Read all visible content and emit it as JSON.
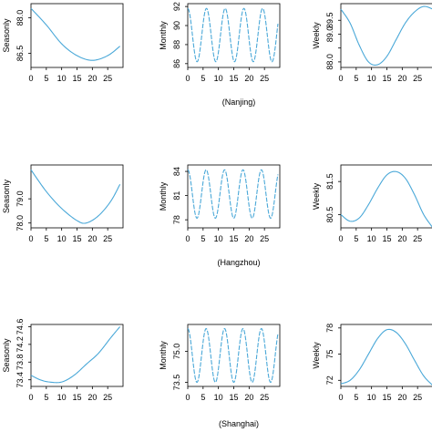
{
  "chart_data": [
    {
      "type": "line",
      "city": "(Nanjing)",
      "panels": [
        {
          "ylabel": "Seasonly",
          "xlim": [
            0,
            30
          ],
          "ylim": [
            85.9,
            88.6
          ],
          "xticks": [
            0,
            5,
            10,
            15,
            20,
            25
          ],
          "yticks": [
            86.5,
            88.0
          ],
          "ytick_labels": [
            "86.5",
            "88.0"
          ],
          "period": 0,
          "amplitude": 0,
          "series": {
            "x": [
              0,
              5,
              10,
              15,
              20,
              25,
              29
            ],
            "y": [
              88.4,
              87.7,
              86.9,
              86.4,
              86.2,
              86.4,
              86.8
            ]
          }
        },
        {
          "ylabel": "Monthly",
          "xlim": [
            0,
            30
          ],
          "ylim": [
            85.6,
            92.3
          ],
          "xticks": [
            0,
            5,
            10,
            15,
            20,
            25
          ],
          "yticks": [
            86,
            88,
            90,
            92
          ],
          "ytick_labels": [
            "86",
            "88",
            "90",
            "92"
          ],
          "period": 6.1,
          "amplitude": 2.8,
          "mean": 89.0,
          "phase": 0
        },
        {
          "ylabel": "Weekly",
          "xlim": [
            0,
            30
          ],
          "ylim": [
            87.8,
            90.1
          ],
          "xticks": [
            0,
            5,
            10,
            15,
            20,
            25
          ],
          "yticks": [
            88.0,
            88.5,
            89.0,
            89.5
          ],
          "ytick_labels": [
            "88.0",
            "",
            "89.0",
            "89.5"
          ],
          "period": 0,
          "amplitude": 0,
          "series": {
            "x": [
              0,
              3,
              6,
              9,
              12,
              15,
              18,
              21,
              24,
              27,
              30
            ],
            "y": [
              89.9,
              89.4,
              88.6,
              88.0,
              87.9,
              88.2,
              88.8,
              89.4,
              89.8,
              90.0,
              89.9
            ]
          }
        }
      ]
    },
    {
      "type": "line",
      "city": "(Hangzhou)",
      "panels": [
        {
          "ylabel": "Seasonly",
          "xlim": [
            0,
            30
          ],
          "ylim": [
            77.8,
            80.4
          ],
          "xticks": [
            0,
            5,
            10,
            15,
            20,
            25
          ],
          "yticks": [
            78.0,
            79.0
          ],
          "ytick_labels": [
            "78.0",
            "79.0"
          ],
          "period": 0,
          "amplitude": 0,
          "series": {
            "x": [
              0,
              5,
              10,
              15,
              18,
              22,
              26,
              29
            ],
            "y": [
              80.2,
              79.3,
              78.6,
              78.1,
              78.0,
              78.3,
              78.9,
              79.6
            ]
          }
        },
        {
          "ylabel": "Monthly",
          "xlim": [
            0,
            30
          ],
          "ylim": [
            77.0,
            84.8
          ],
          "xticks": [
            0,
            5,
            10,
            15,
            20,
            25
          ],
          "yticks": [
            78,
            81,
            84
          ],
          "ytick_labels": [
            "78",
            "81",
            "84"
          ],
          "period": 6.0,
          "amplitude": 3.0,
          "mean": 81.2,
          "phase": 0
        },
        {
          "ylabel": "Weekly",
          "xlim": [
            0,
            30
          ],
          "ylim": [
            80.1,
            82.0
          ],
          "xticks": [
            0,
            5,
            10,
            15,
            20,
            25
          ],
          "yticks": [
            80.5,
            81.5
          ],
          "ytick_labels": [
            "80.5",
            "81.5"
          ],
          "period": 0,
          "amplitude": 0,
          "series": {
            "x": [
              0,
              3,
              6,
              9,
              12,
              15,
              18,
              21,
              24,
              27,
              30
            ],
            "y": [
              80.5,
              80.3,
              80.4,
              80.8,
              81.3,
              81.7,
              81.8,
              81.6,
              81.1,
              80.5,
              80.1
            ]
          }
        }
      ]
    },
    {
      "type": "line",
      "city": "(Shanghai)",
      "panels": [
        {
          "ylabel": "Seasonly",
          "xlim": [
            0,
            30
          ],
          "ylim": [
            73.25,
            74.65
          ],
          "xticks": [
            0,
            5,
            10,
            15,
            20,
            25
          ],
          "yticks": [
            73.4,
            73.8,
            74.2,
            74.6
          ],
          "ytick_labels": [
            "73.4",
            "73.8",
            "74.2",
            "74.6"
          ],
          "period": 0,
          "amplitude": 0,
          "series": {
            "x": [
              0,
              3,
              6,
              10,
              14,
              18,
              22,
              26,
              29
            ],
            "y": [
              73.5,
              73.4,
              73.35,
              73.35,
              73.5,
              73.75,
              74.0,
              74.35,
              74.6
            ]
          }
        },
        {
          "ylabel": "Monthly",
          "xlim": [
            0,
            30
          ],
          "ylim": [
            73.3,
            76.3
          ],
          "xticks": [
            0,
            5,
            10,
            15,
            20,
            25
          ],
          "yticks": [
            73.5,
            75.0
          ],
          "ytick_labels": [
            "73.5",
            "75.0"
          ],
          "period": 6.0,
          "amplitude": 1.3,
          "mean": 74.8,
          "phase": 0
        },
        {
          "ylabel": "Weekly",
          "xlim": [
            0,
            30
          ],
          "ylim": [
            71.3,
            78.4
          ],
          "xticks": [
            0,
            5,
            10,
            15,
            20,
            25
          ],
          "yticks": [
            72,
            75,
            78
          ],
          "ytick_labels": [
            "72",
            "75",
            "78"
          ],
          "period": 0,
          "amplitude": 0,
          "series": {
            "x": [
              0,
              3,
              6,
              9,
              12,
              15,
              18,
              21,
              24,
              27,
              30
            ],
            "y": [
              71.6,
              72.0,
              73.2,
              75.0,
              76.8,
              77.8,
              77.5,
              76.2,
              74.3,
              72.5,
              71.4
            ]
          }
        }
      ]
    }
  ],
  "colors": {
    "line": "#4aa8d8",
    "axis": "#000000"
  },
  "tick_labels_x": [
    "0",
    "5",
    "10",
    "15",
    "20",
    "25"
  ]
}
